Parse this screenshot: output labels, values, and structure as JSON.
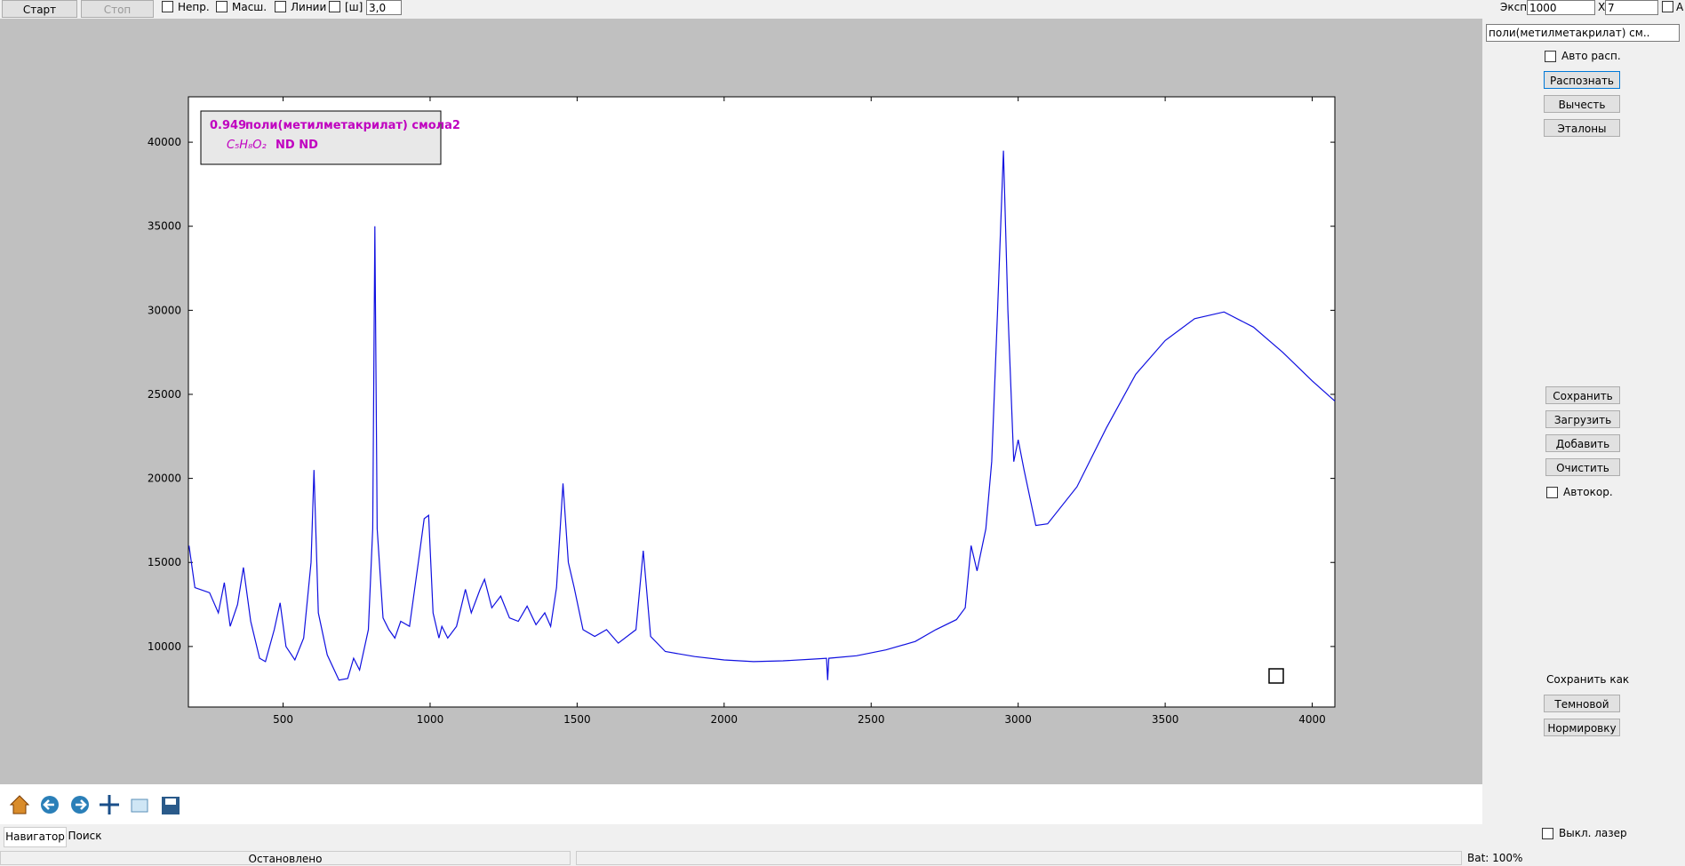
{
  "toolbar": {
    "start": "Старт",
    "stop": "Стоп",
    "checks": [
      "Непр.",
      "Масш.",
      "Линии",
      "[ш]"
    ],
    "spin": "3,0",
    "exp_label": "Эксп.",
    "exp_value": "1000",
    "x_label": "X",
    "count": "7",
    "auto": "А"
  },
  "side_panel": {
    "library": "поли(метилметакрилат) см..",
    "auto_recognize": "Авто расп.",
    "recognize": "Распознать",
    "subtract": "Вычесть",
    "standards": "Эталоны",
    "save": "Сохранить",
    "load": "Загрузить",
    "add": "Добавить",
    "clear": "Очистить",
    "autocorr": "Автокор.",
    "save_as": "Сохранить как",
    "dark": "Темновой",
    "normalization": "Нормировку",
    "laser_off": "Выкл. лазер"
  },
  "navigation": {
    "tabs": [
      "Навигатор",
      "Поиск"
    ]
  },
  "status": {
    "state": "Остановлено",
    "battery": "Bat: 100%"
  },
  "chart_data": {
    "type": "line",
    "match": {
      "score": "0.949",
      "name": "поли(метилметакрилат) смола2",
      "formula": "C₅H₈O₂",
      "extra": "ND ND"
    },
    "x": [
      180,
      200,
      250,
      280,
      300,
      320,
      345,
      365,
      390,
      420,
      440,
      470,
      490,
      510,
      540,
      570,
      595,
      605,
      620,
      650,
      690,
      720,
      740,
      760,
      790,
      805,
      812,
      820,
      840,
      860,
      880,
      900,
      930,
      960,
      980,
      995,
      1010,
      1030,
      1040,
      1060,
      1090,
      1120,
      1140,
      1170,
      1185,
      1210,
      1240,
      1270,
      1300,
      1330,
      1360,
      1390,
      1410,
      1430,
      1452,
      1470,
      1490,
      1520,
      1560,
      1600,
      1640,
      1700,
      1725,
      1750,
      1800,
      1900,
      2000,
      2100,
      2200,
      2300,
      2348,
      2352,
      2356,
      2450,
      2550,
      2650,
      2720,
      2790,
      2820,
      2840,
      2860,
      2890,
      2910,
      2930,
      2950,
      2965,
      2985,
      3000,
      3020,
      3060,
      3100,
      3200,
      3300,
      3400,
      3500,
      3600,
      3700,
      3800,
      3900,
      4000,
      4077
    ],
    "series": [
      {
        "color": "#1010e0",
        "values": [
          16000,
          13500,
          13200,
          12000,
          13800,
          11200,
          12500,
          14700,
          11500,
          9300,
          9100,
          11000,
          12600,
          10000,
          9200,
          10500,
          15000,
          20500,
          12000,
          9500,
          8000,
          8100,
          9300,
          8600,
          11000,
          17000,
          35000,
          17000,
          11700,
          11000,
          10500,
          11500,
          11200,
          15000,
          17600,
          17800,
          12000,
          10500,
          11200,
          10500,
          11200,
          13400,
          12000,
          13400,
          14000,
          12300,
          13000,
          11700,
          11500,
          12400,
          11300,
          12000,
          11200,
          13500,
          19700,
          15000,
          13500,
          11000,
          10600,
          11000,
          10200,
          11000,
          15700,
          10600,
          9700,
          9400,
          9200,
          9100,
          9150,
          9250,
          9300,
          8000,
          9300,
          9450,
          9800,
          10300,
          11000,
          11600,
          12300,
          16000,
          14500,
          17000,
          21000,
          30000,
          39500,
          30000,
          21000,
          22300,
          20500,
          17200,
          17300,
          19500,
          23000,
          26200,
          28200,
          29500,
          29900,
          29000,
          27500,
          25800,
          24600
        ]
      }
    ],
    "xlim": [
      178,
      4077
    ],
    "ylim": [
      6400,
      42700
    ],
    "xticks": [
      500,
      1000,
      1500,
      2000,
      2500,
      3000,
      3500,
      4000
    ],
    "yticks": [
      10000,
      15000,
      20000,
      25000,
      30000,
      35000,
      40000
    ]
  }
}
